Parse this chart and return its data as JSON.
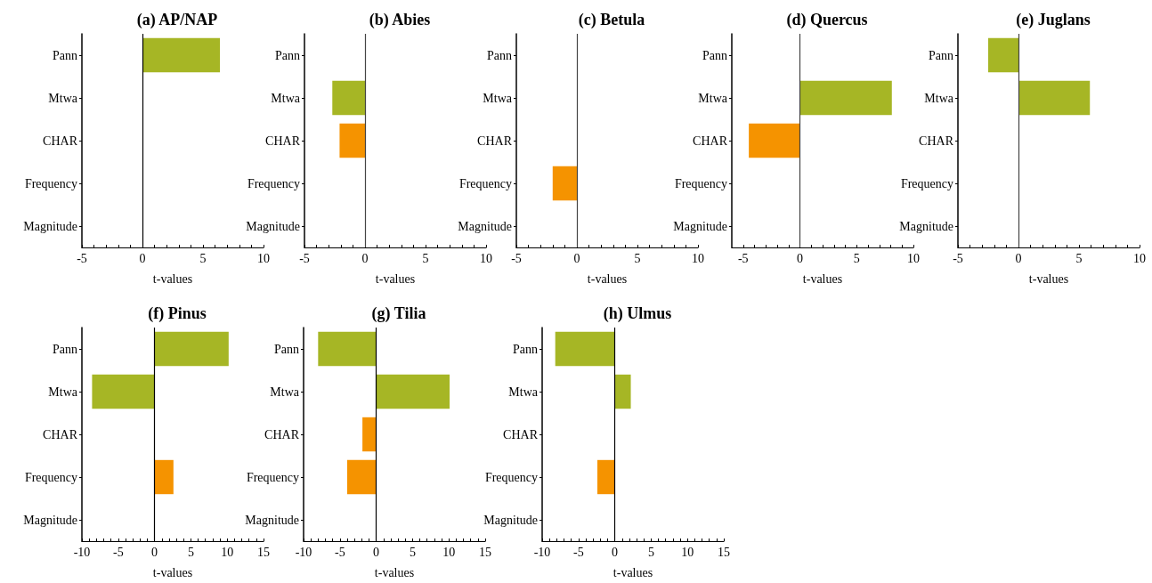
{
  "chart_data": [
    {
      "type": "bar",
      "orientation": "horizontal",
      "title": "(a) AP/NAP",
      "xlabel": "t-values",
      "categories": [
        "Pann",
        "Mtwa",
        "CHAR",
        "Frequency",
        "Magnitude"
      ],
      "values": [
        6.4,
        null,
        null,
        null,
        null
      ],
      "colors": [
        "#a6b625",
        null,
        null,
        null,
        null
      ],
      "xlim": [
        -5,
        10
      ],
      "xticks": [
        -5,
        {
          "value": -4,
          "label": null
        },
        {
          "value": -3,
          "label": null
        },
        {
          "value": -2,
          "label": null
        },
        {
          "value": -1,
          "label": null
        },
        0,
        {
          "value": 1,
          "label": null
        },
        {
          "value": 2,
          "label": null
        },
        {
          "value": 3,
          "label": null
        },
        {
          "value": 4,
          "label": null
        },
        5,
        {
          "value": 6,
          "label": null
        },
        {
          "value": 7,
          "label": null
        },
        {
          "value": 8,
          "label": null
        },
        {
          "value": 9,
          "label": null
        },
        10
      ],
      "ref_lines": [
        {
          "axis": "x",
          "value": 0,
          "color": "#000000"
        }
      ]
    },
    {
      "type": "bar",
      "orientation": "horizontal",
      "title": "(b) Abies",
      "xlabel": "t-values",
      "categories": [
        "Pann",
        "Mtwa",
        "CHAR",
        "Frequency",
        "Magnitude"
      ],
      "values": [
        null,
        -2.7,
        -2.1,
        null,
        null
      ],
      "colors": [
        null,
        "#a6b625",
        "#f59300",
        null,
        null
      ],
      "xlim": [
        -5,
        10
      ],
      "xticks": [
        -5,
        {
          "value": -4,
          "label": null
        },
        {
          "value": -3,
          "label": null
        },
        {
          "value": -2,
          "label": null
        },
        {
          "value": -1,
          "label": null
        },
        0,
        {
          "value": 1,
          "label": null
        },
        {
          "value": 2,
          "label": null
        },
        {
          "value": 3,
          "label": null
        },
        {
          "value": 4,
          "label": null
        },
        5,
        {
          "value": 6,
          "label": null
        },
        {
          "value": 7,
          "label": null
        },
        {
          "value": 8,
          "label": null
        },
        {
          "value": 9,
          "label": null
        },
        10
      ],
      "ref_lines": [
        {
          "axis": "x",
          "value": 0,
          "color": "#444444"
        }
      ]
    },
    {
      "type": "bar",
      "orientation": "horizontal",
      "title": "(c) Betula",
      "xlabel": "t-values",
      "categories": [
        "Pann",
        "Mtwa",
        "CHAR",
        "Frequency",
        "Magnitude"
      ],
      "values": [
        null,
        null,
        null,
        -2,
        null
      ],
      "colors": [
        null,
        null,
        null,
        "#f59300",
        null
      ],
      "xlim": [
        -5,
        10
      ],
      "xticks": [
        -5,
        {
          "value": -4,
          "label": null
        },
        {
          "value": -3,
          "label": null
        },
        {
          "value": -2,
          "label": null
        },
        {
          "value": -1,
          "label": null
        },
        0,
        {
          "value": 1,
          "label": null
        },
        {
          "value": 2,
          "label": null
        },
        {
          "value": 3,
          "label": null
        },
        {
          "value": 4,
          "label": null
        },
        5,
        {
          "value": 6,
          "label": null
        },
        {
          "value": 7,
          "label": null
        },
        {
          "value": 8,
          "label": null
        },
        {
          "value": 9,
          "label": null
        },
        10
      ],
      "ref_lines": [
        {
          "axis": "x",
          "value": 0,
          "color": "#444444"
        }
      ]
    },
    {
      "type": "bar",
      "orientation": "horizontal",
      "title": "(d) Quercus",
      "xlabel": "t-values",
      "categories": [
        "Pann",
        "Mtwa",
        "CHAR",
        "Frequency",
        "Magnitude"
      ],
      "values": [
        null,
        8.1,
        -4.5,
        null,
        null
      ],
      "colors": [
        null,
        "#a6b625",
        "#f59300",
        null,
        null
      ],
      "xlim": [
        -6,
        10
      ],
      "xticks": [
        -5,
        {
          "value": -4,
          "label": null
        },
        {
          "value": -3,
          "label": null
        },
        {
          "value": -2,
          "label": null
        },
        {
          "value": -1,
          "label": null
        },
        0,
        {
          "value": 1,
          "label": null
        },
        {
          "value": 2,
          "label": null
        },
        {
          "value": 3,
          "label": null
        },
        {
          "value": 4,
          "label": null
        },
        5,
        {
          "value": 6,
          "label": null
        },
        {
          "value": 7,
          "label": null
        },
        {
          "value": 8,
          "label": null
        },
        {
          "value": 9,
          "label": null
        },
        10
      ],
      "ref_lines": [
        {
          "axis": "x",
          "value": 0,
          "color": "#444444"
        }
      ]
    },
    {
      "type": "bar",
      "orientation": "horizontal",
      "title": "(e) Juglans",
      "xlabel": "t-values",
      "categories": [
        "Pann",
        "Mtwa",
        "CHAR",
        "Frequency",
        "Magnitude"
      ],
      "values": [
        -2.5,
        5.9,
        null,
        null,
        null
      ],
      "colors": [
        "#a6b625",
        "#a6b625",
        null,
        null,
        null
      ],
      "xlim": [
        -5,
        10
      ],
      "xticks": [
        -5,
        {
          "value": -4,
          "label": null
        },
        {
          "value": -3,
          "label": null
        },
        {
          "value": -2,
          "label": null
        },
        {
          "value": -1,
          "label": null
        },
        0,
        {
          "value": 1,
          "label": null
        },
        {
          "value": 2,
          "label": null
        },
        {
          "value": 3,
          "label": null
        },
        {
          "value": 4,
          "label": null
        },
        5,
        {
          "value": 6,
          "label": null
        },
        {
          "value": 7,
          "label": null
        },
        {
          "value": 8,
          "label": null
        },
        {
          "value": 9,
          "label": null
        },
        10
      ],
      "ref_lines": [
        {
          "axis": "x",
          "value": 0,
          "color": "#444444"
        }
      ]
    },
    {
      "type": "bar",
      "orientation": "horizontal",
      "title": "(f) Pinus",
      "xlabel": "t-values",
      "categories": [
        "Pann",
        "Mtwa",
        "CHAR",
        "Frequency",
        "Magnitude"
      ],
      "values": [
        10.2,
        -8.6,
        null,
        2.6,
        null
      ],
      "colors": [
        "#a6b625",
        "#a6b625",
        null,
        "#f59300",
        null
      ],
      "xlim": [
        -10,
        15
      ],
      "xticks": [
        -10,
        {
          "value": -9,
          "label": null
        },
        {
          "value": -8,
          "label": null
        },
        {
          "value": -7,
          "label": null
        },
        {
          "value": -6,
          "label": null
        },
        -5,
        {
          "value": -4,
          "label": null
        },
        {
          "value": -3,
          "label": null
        },
        {
          "value": -2,
          "label": null
        },
        {
          "value": -1,
          "label": null
        },
        0,
        {
          "value": 1,
          "label": null
        },
        {
          "value": 2,
          "label": null
        },
        {
          "value": 3,
          "label": null
        },
        {
          "value": 4,
          "label": null
        },
        5,
        {
          "value": 6,
          "label": null
        },
        {
          "value": 7,
          "label": null
        },
        {
          "value": 8,
          "label": null
        },
        {
          "value": 9,
          "label": null
        },
        10,
        {
          "value": 11,
          "label": null
        },
        {
          "value": 12,
          "label": null
        },
        {
          "value": 13,
          "label": null
        },
        {
          "value": 14,
          "label": null
        },
        15
      ],
      "ref_lines": [
        {
          "axis": "x",
          "value": 0,
          "color": "#000000"
        }
      ]
    },
    {
      "type": "bar",
      "orientation": "horizontal",
      "title": "(g) Tilia",
      "xlabel": "t-values",
      "categories": [
        "Pann",
        "Mtwa",
        "CHAR",
        "Frequency",
        "Magnitude"
      ],
      "values": [
        -8,
        10.1,
        -1.9,
        -4,
        null
      ],
      "colors": [
        "#a6b625",
        "#a6b625",
        "#f59300",
        "#f59300",
        null
      ],
      "xlim": [
        -10,
        15
      ],
      "xticks": [
        -10,
        {
          "value": -9,
          "label": null
        },
        {
          "value": -8,
          "label": null
        },
        {
          "value": -7,
          "label": null
        },
        {
          "value": -6,
          "label": null
        },
        -5,
        {
          "value": -4,
          "label": null
        },
        {
          "value": -3,
          "label": null
        },
        {
          "value": -2,
          "label": null
        },
        {
          "value": -1,
          "label": null
        },
        0,
        {
          "value": 1,
          "label": null
        },
        {
          "value": 2,
          "label": null
        },
        {
          "value": 3,
          "label": null
        },
        {
          "value": 4,
          "label": null
        },
        5,
        {
          "value": 6,
          "label": null
        },
        {
          "value": 7,
          "label": null
        },
        {
          "value": 8,
          "label": null
        },
        {
          "value": 9,
          "label": null
        },
        10,
        {
          "value": 11,
          "label": null
        },
        {
          "value": 12,
          "label": null
        },
        {
          "value": 13,
          "label": null
        },
        {
          "value": 14,
          "label": null
        },
        15
      ],
      "ref_lines": [
        {
          "axis": "x",
          "value": 0,
          "color": "#000000"
        }
      ]
    },
    {
      "type": "bar",
      "orientation": "horizontal",
      "title": "(h) Ulmus",
      "xlabel": "t-values",
      "categories": [
        "Pann",
        "Mtwa",
        "CHAR",
        "Frequency",
        "Magnitude"
      ],
      "values": [
        -8.2,
        2.2,
        null,
        -2.4,
        null
      ],
      "colors": [
        "#a6b625",
        "#a6b625",
        null,
        "#f59300",
        null
      ],
      "xlim": [
        -10,
        15
      ],
      "xticks": [
        -10,
        {
          "value": -9,
          "label": null
        },
        {
          "value": -8,
          "label": null
        },
        {
          "value": -7,
          "label": null
        },
        {
          "value": -6,
          "label": null
        },
        -5,
        {
          "value": -4,
          "label": null
        },
        {
          "value": -3,
          "label": null
        },
        {
          "value": -2,
          "label": null
        },
        {
          "value": -1,
          "label": null
        },
        0,
        {
          "value": 1,
          "label": null
        },
        {
          "value": 2,
          "label": null
        },
        {
          "value": 3,
          "label": null
        },
        {
          "value": 4,
          "label": null
        },
        5,
        {
          "value": 6,
          "label": null
        },
        {
          "value": 7,
          "label": null
        },
        {
          "value": 8,
          "label": null
        },
        {
          "value": 9,
          "label": null
        },
        10,
        {
          "value": 11,
          "label": null
        },
        {
          "value": 12,
          "label": null
        },
        {
          "value": 13,
          "label": null
        },
        {
          "value": 14,
          "label": null
        },
        15
      ],
      "ref_lines": [
        {
          "axis": "x",
          "value": 0,
          "color": "#000000"
        }
      ]
    }
  ]
}
